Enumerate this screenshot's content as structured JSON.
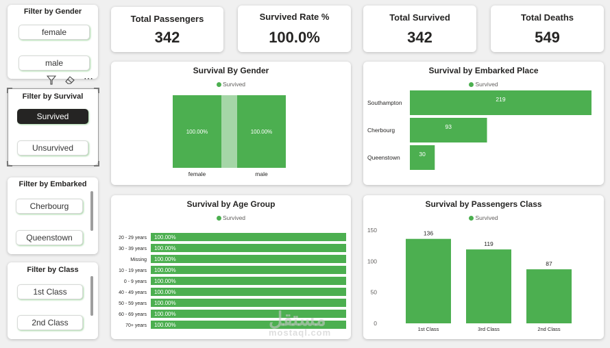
{
  "filters": {
    "gender": {
      "title": "Filter by Gender",
      "options": [
        "female",
        "male"
      ]
    },
    "survival": {
      "title": "Filter by Survival",
      "options": [
        "Survived",
        "Unsurvived"
      ],
      "selected": "Survived"
    },
    "embarked": {
      "title": "Filter by Embarked",
      "options": [
        "Cherbourg",
        "Queenstown"
      ]
    },
    "class": {
      "title": "Filter by Class",
      "options": [
        "1st Class",
        "2nd Class"
      ]
    }
  },
  "kpis": [
    {
      "label": "Total Passengers",
      "value": "342"
    },
    {
      "label": "Survived Rate %",
      "value": "100.0%"
    },
    {
      "label": "Total Survived",
      "value": "342"
    },
    {
      "label": "Total Deaths",
      "value": "549"
    }
  ],
  "colors": {
    "bar": "#4caf50",
    "bar_light": "#a5d6a7",
    "selected": "#252423"
  },
  "toolbar": {
    "icons": [
      "filter-icon",
      "eraser-icon",
      "more-icon"
    ],
    "more_glyph": "⋯"
  },
  "watermark": {
    "ar": "مستقل",
    "en": "mostaql.com"
  },
  "chart_data": [
    {
      "id": "gender",
      "type": "bar",
      "title": "Survival By Gender",
      "legend": [
        "Survived"
      ],
      "categories": [
        "female",
        "male"
      ],
      "values": [
        100,
        100
      ],
      "labels": [
        "100.00%",
        "100.00%"
      ]
    },
    {
      "id": "embarked",
      "type": "bar",
      "orientation": "horizontal",
      "title": "Survival by Embarked Place",
      "legend": [
        "Survived"
      ],
      "categories": [
        "Southampton",
        "Cherbourg",
        "Queenstown"
      ],
      "values": [
        219,
        93,
        30
      ]
    },
    {
      "id": "age",
      "type": "bar",
      "orientation": "horizontal",
      "title": "Survival by Age Group",
      "legend": [
        "Survived"
      ],
      "categories": [
        "20 - 29 years",
        "30 - 39 years",
        "Missing",
        "10 - 19 years",
        "0 - 9 years",
        "40 - 49 years",
        "50 - 59 years",
        "60 - 69 years",
        "70+ years"
      ],
      "values": [
        100,
        100,
        100,
        100,
        100,
        100,
        100,
        100,
        100
      ],
      "labels": [
        "100.00%",
        "100.00%",
        "100.00%",
        "100.00%",
        "100.00%",
        "100.00%",
        "100.00%",
        "100.00%",
        "100.00%"
      ]
    },
    {
      "id": "class",
      "type": "bar",
      "title": "Survival by Passengers Class",
      "legend": [
        "Survived"
      ],
      "categories": [
        "1st Class",
        "3rd Class",
        "2nd Class"
      ],
      "values": [
        136,
        119,
        87
      ],
      "ylim": [
        0,
        150
      ],
      "yticks": [
        "0",
        "50",
        "100",
        "150"
      ]
    }
  ]
}
